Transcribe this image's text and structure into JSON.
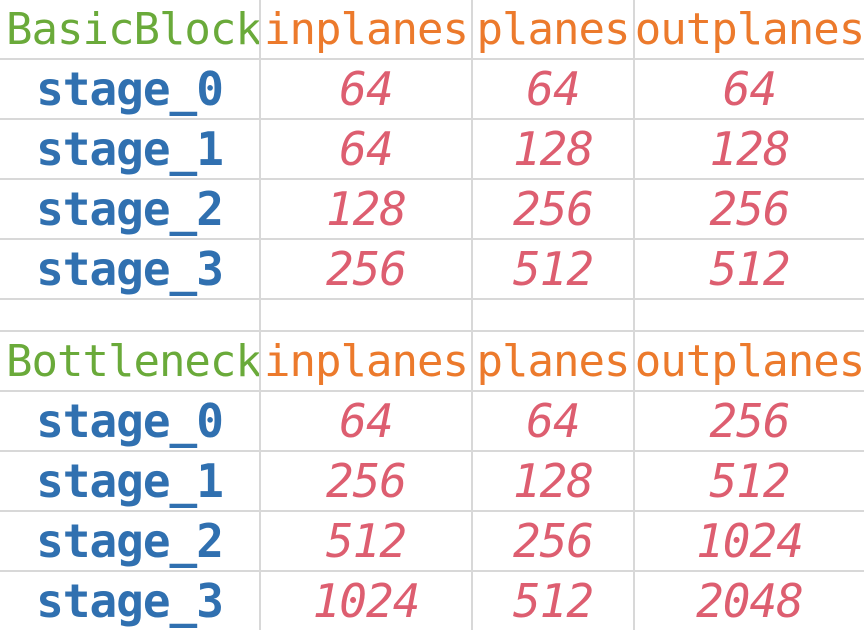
{
  "tables": [
    {
      "name": "BasicBlock",
      "columns": [
        "inplanes",
        "planes",
        "outplanes"
      ],
      "rows": [
        {
          "label": "stage_0",
          "values": [
            "64",
            "64",
            "64"
          ]
        },
        {
          "label": "stage_1",
          "values": [
            "64",
            "128",
            "128"
          ]
        },
        {
          "label": "stage_2",
          "values": [
            "128",
            "256",
            "256"
          ]
        },
        {
          "label": "stage_3",
          "values": [
            "256",
            "512",
            "512"
          ]
        }
      ]
    },
    {
      "name": "Bottleneck",
      "columns": [
        "inplanes",
        "planes",
        "outplanes"
      ],
      "rows": [
        {
          "label": "stage_0",
          "values": [
            "64",
            "64",
            "256"
          ]
        },
        {
          "label": "stage_1",
          "values": [
            "256",
            "128",
            "512"
          ]
        },
        {
          "label": "stage_2",
          "values": [
            "512",
            "256",
            "1024"
          ]
        },
        {
          "label": "stage_3",
          "values": [
            "1024",
            "512",
            "2048"
          ]
        }
      ]
    }
  ],
  "colors": {
    "block_name": "#6aaa3a",
    "column_header": "#ec7a2c",
    "stage_label": "#3070b0",
    "value": "#dd5e70",
    "grid_line": "#d8d8d8"
  }
}
